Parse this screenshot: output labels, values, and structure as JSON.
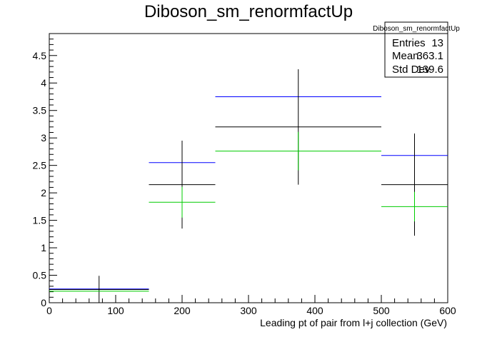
{
  "chart_data": {
    "type": "scatter",
    "title": "Diboson_sm_renormfactUp",
    "xlabel": "Leading pt of pair from l+j collection (GeV)",
    "ylabel": "",
    "xlim": [
      0,
      600
    ],
    "ylim": [
      0,
      4.9
    ],
    "x_ticks": [
      0,
      100,
      200,
      300,
      400,
      500,
      600
    ],
    "y_ticks": [
      0,
      0.5,
      1,
      1.5,
      2,
      2.5,
      3,
      3.5,
      4,
      4.5
    ],
    "x_tick_labels": [
      "0",
      "100",
      "200",
      "300",
      "400",
      "500",
      "600"
    ],
    "y_tick_labels": [
      "0",
      "0.5",
      "1",
      "1.5",
      "2",
      "2.5",
      "3",
      "3.5",
      "4",
      "4.5"
    ],
    "grid": false,
    "legend": "none",
    "bins": [
      [
        0,
        150
      ],
      [
        150,
        250
      ],
      [
        250,
        500
      ],
      [
        500,
        600
      ]
    ],
    "series": [
      {
        "color": "#0000ff",
        "values": [
          0.25,
          2.55,
          3.75,
          2.68
        ],
        "errors": [
          0,
          0,
          0,
          0
        ]
      },
      {
        "color": "#000000",
        "values": [
          0.24,
          2.15,
          3.2,
          2.15
        ],
        "errors": [
          0.25,
          0.8,
          1.05,
          0.93
        ]
      },
      {
        "color": "#00cc00",
        "values": [
          0.21,
          1.83,
          2.76,
          1.75
        ],
        "errors": [
          0,
          0.28,
          0.35,
          0.27
        ]
      }
    ],
    "stats_box": {
      "name": "Diboson_sm_renormfactUp",
      "rows": [
        {
          "label": "Entries",
          "value": "13"
        },
        {
          "label": "Mean",
          "value": "363.1"
        },
        {
          "label": "Std Dev",
          "value": "139.6"
        }
      ]
    }
  }
}
